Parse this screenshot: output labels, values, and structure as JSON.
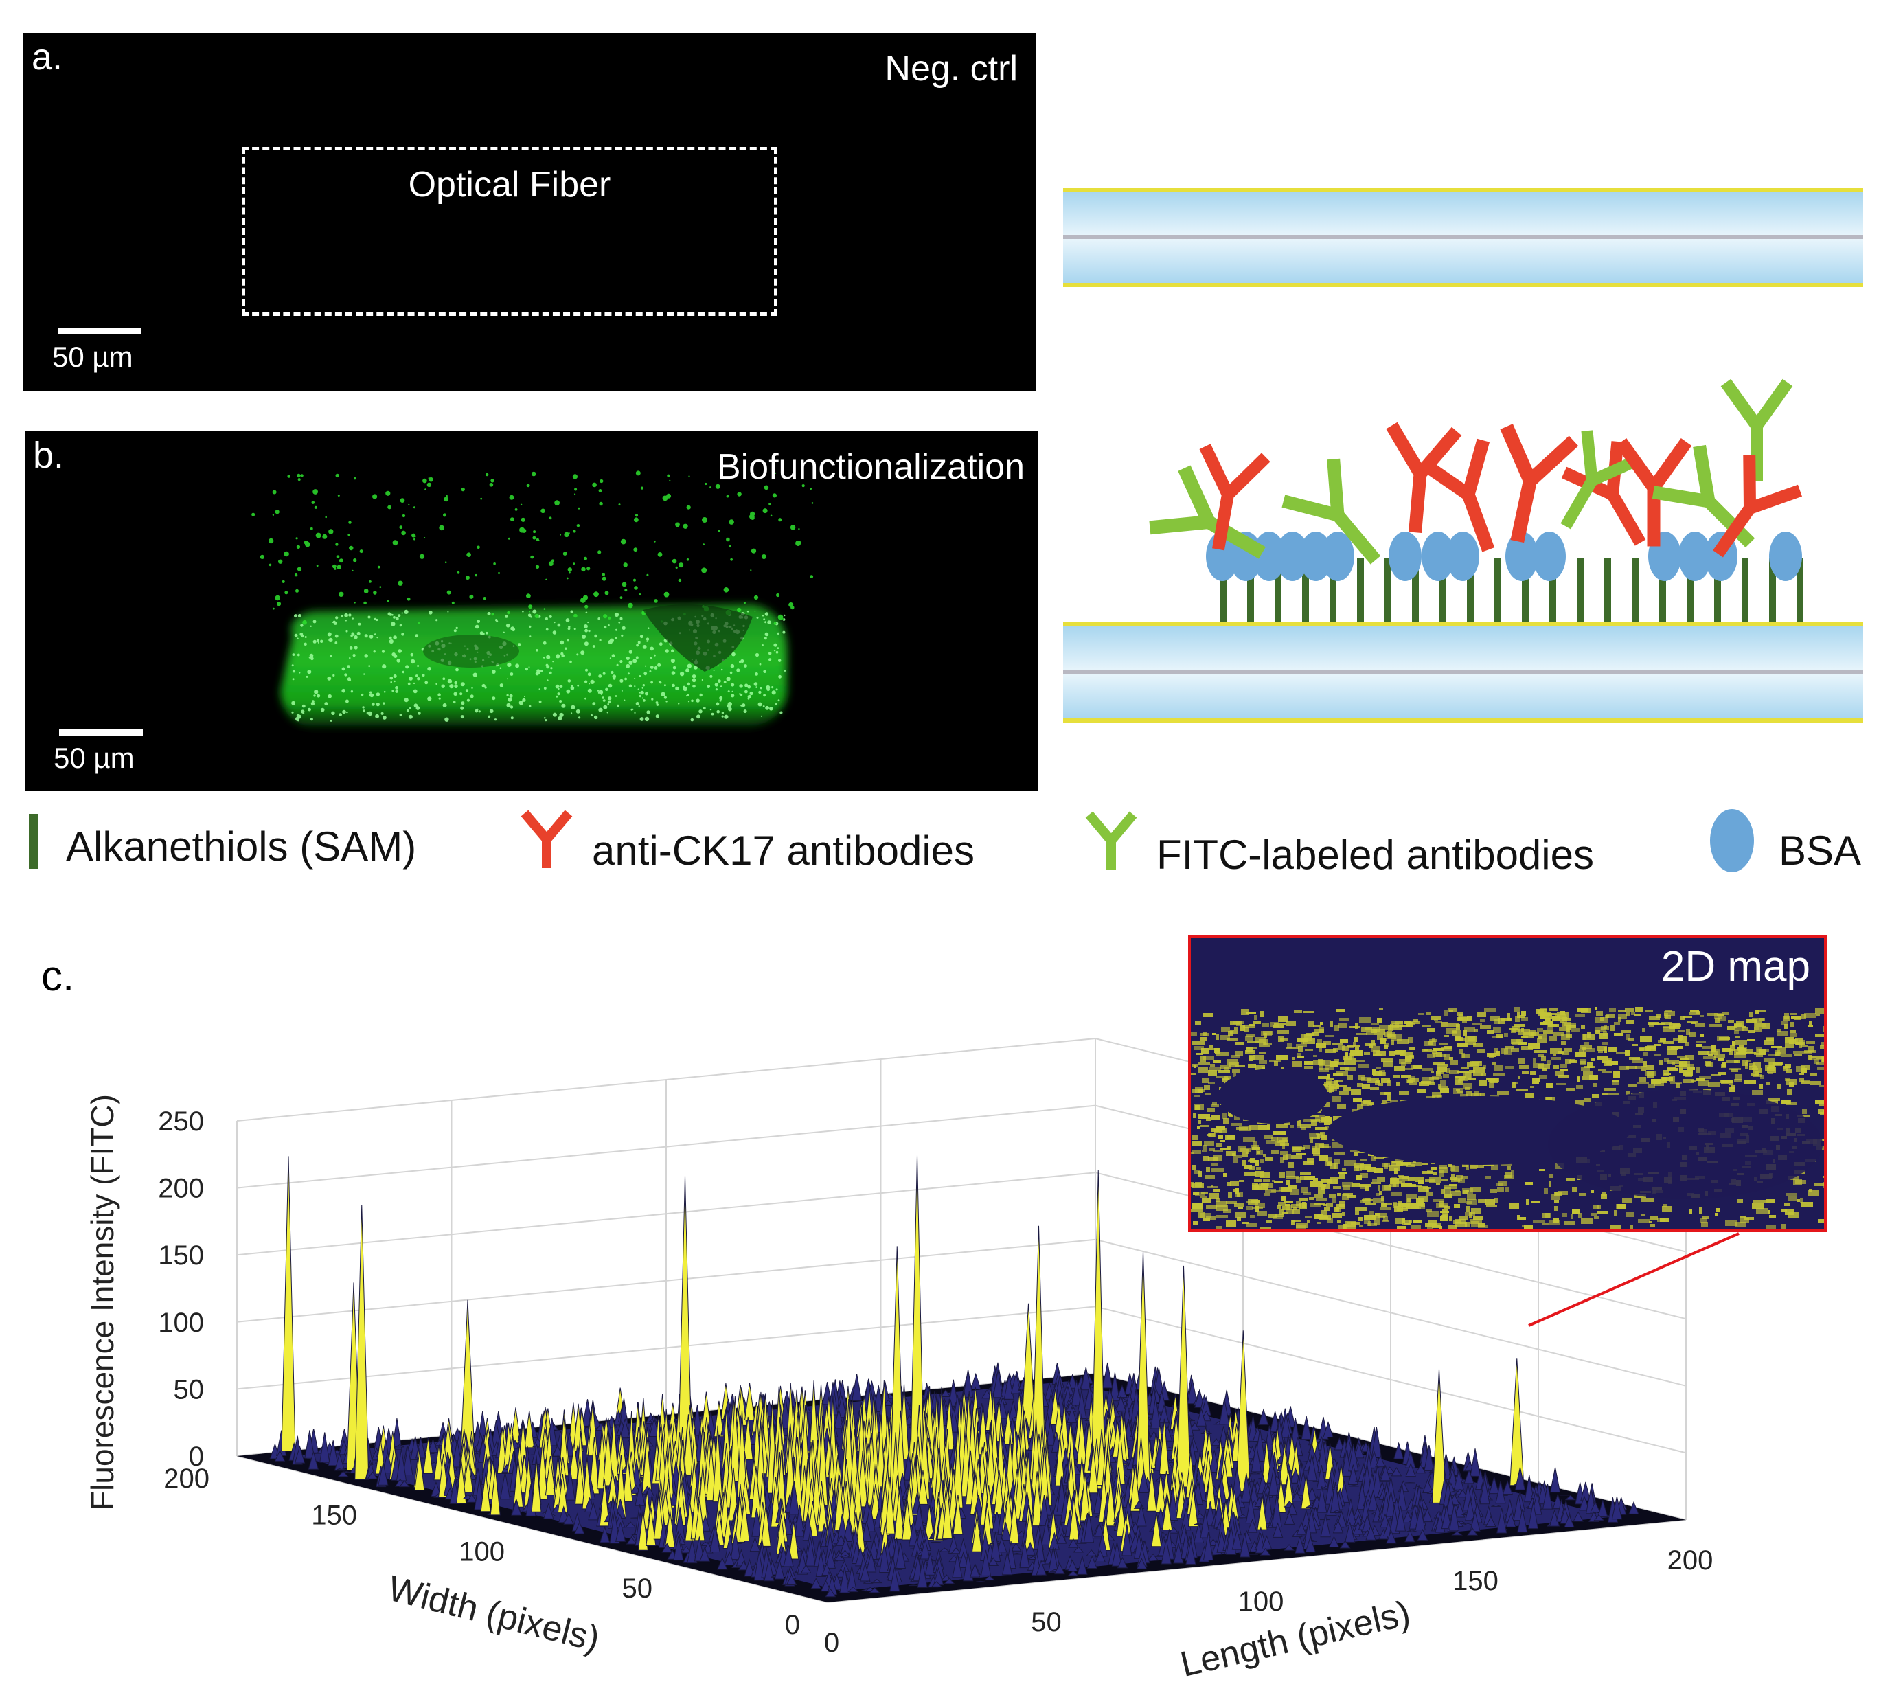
{
  "panel_a": {
    "label": "a.",
    "title": "Neg. ctrl",
    "fiber_label": "Optical Fiber",
    "scale": "50 µm"
  },
  "panel_b": {
    "label": "b.",
    "title": "Biofunctionalization",
    "scale": "50 µm"
  },
  "legend": {
    "items": [
      {
        "name": "Alkanethiols (SAM)",
        "symbol": "bar",
        "color": "#3d6b2a"
      },
      {
        "name": "anti-CK17 antibodies",
        "symbol": "Y",
        "color": "#e8412b"
      },
      {
        "name": "FITC-labeled antibodies",
        "symbol": "Y",
        "color": "#86c43c"
      },
      {
        "name": "BSA",
        "symbol": "ellipse",
        "color": "#6aa6d8"
      }
    ]
  },
  "colors": {
    "fiber_core": "#c7e6f6",
    "fiber_cladding": "#e7e33a",
    "map_bg": "#1e1a55",
    "map_fg": "#c4c436",
    "surface_low": "#2b2a7a",
    "surface_high": "#f0ee3a"
  },
  "panel_c": {
    "label": "c.",
    "inset_title": "2D map",
    "chart_data": {
      "type": "surface",
      "title": "",
      "zlabel": "Fluorescence Intensity (FITC)",
      "xlabel": "Length (pixels)",
      "ylabel": "Width (pixels)",
      "z_ticks": [
        "0",
        "50",
        "100",
        "150",
        "200",
        "250"
      ],
      "x_ticks": [
        "0",
        "50",
        "100",
        "150",
        "200"
      ],
      "y_ticks": [
        "0",
        "50",
        "100",
        "150",
        "200"
      ],
      "xlim": [
        0,
        200
      ],
      "ylim": [
        0,
        200
      ],
      "zlim": [
        0,
        250
      ]
    }
  }
}
